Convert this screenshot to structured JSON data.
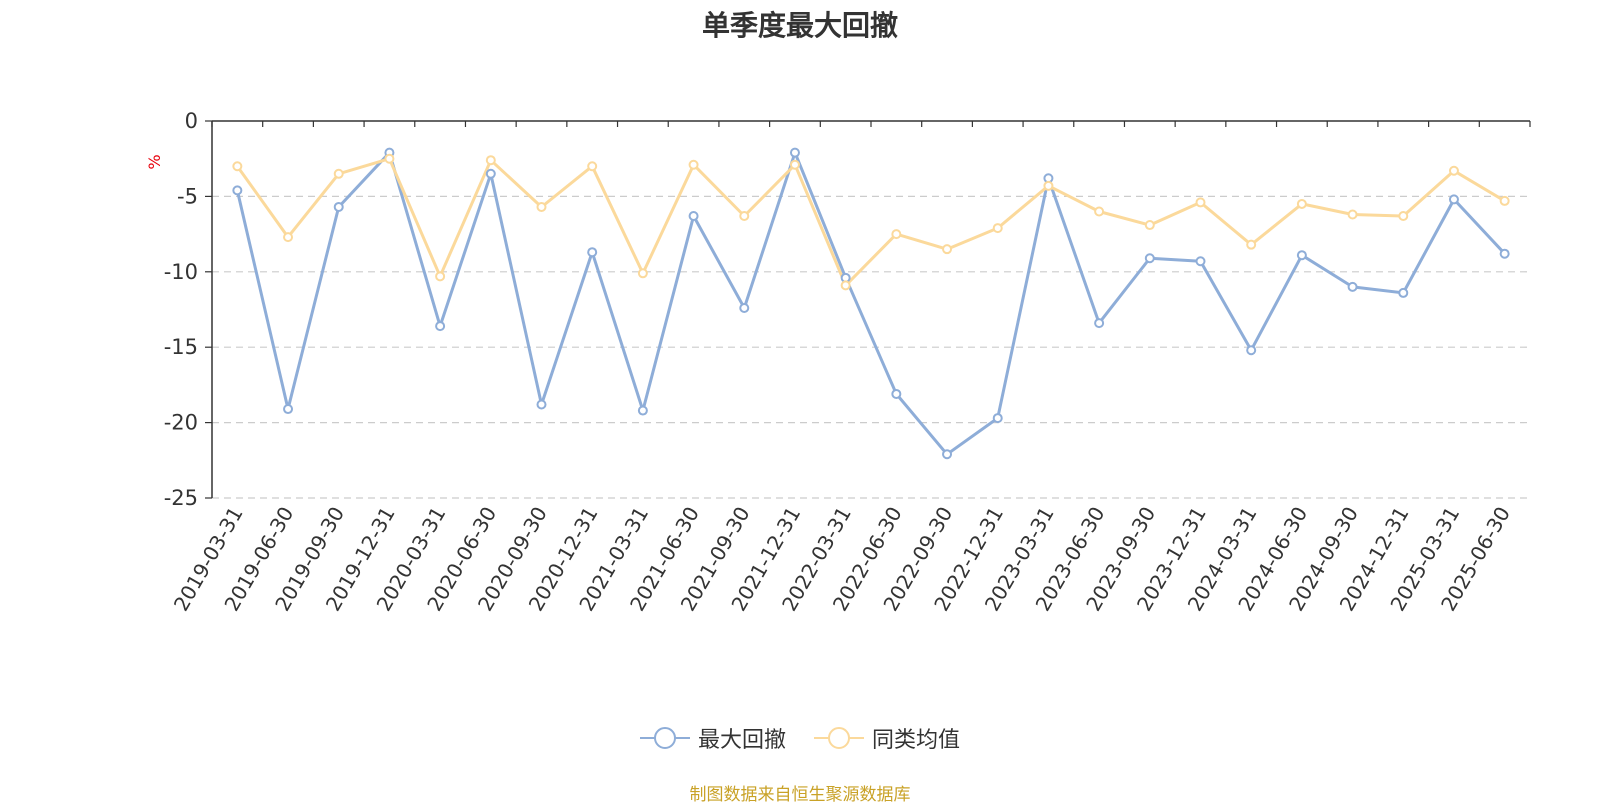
{
  "chart_data": {
    "type": "line",
    "title": "单季度最大回撤",
    "ylabel": "%",
    "ylim": [
      -25,
      0
    ],
    "yticks": [
      0,
      -5,
      -10,
      -15,
      -20,
      -25
    ],
    "grid": true,
    "legend_position": "bottom-center",
    "categories": [
      "2019-03-31",
      "2019-06-30",
      "2019-09-30",
      "2019-12-31",
      "2020-03-31",
      "2020-06-30",
      "2020-09-30",
      "2020-12-31",
      "2021-03-31",
      "2021-06-30",
      "2021-09-30",
      "2021-12-31",
      "2022-03-31",
      "2022-06-30",
      "2022-09-30",
      "2022-12-31",
      "2023-03-31",
      "2023-06-30",
      "2023-09-30",
      "2023-12-31",
      "2024-03-31",
      "2024-06-30",
      "2024-09-30",
      "2024-12-31",
      "2025-03-31",
      "2025-06-30"
    ],
    "series": [
      {
        "name": "最大回撤",
        "color": "#8eadd8",
        "values": [
          -4.6,
          -19.1,
          -5.7,
          -2.1,
          -13.6,
          -3.5,
          -18.8,
          -8.7,
          -19.2,
          -6.3,
          -12.4,
          -2.1,
          -10.4,
          -18.1,
          -22.1,
          -19.7,
          -3.8,
          -13.4,
          -9.1,
          -9.3,
          -15.2,
          -8.9,
          -11.0,
          -11.4,
          -5.2,
          -8.8
        ]
      },
      {
        "name": "同类均值",
        "color": "#fbd99b",
        "values": [
          -3.0,
          -7.7,
          -3.5,
          -2.5,
          -10.3,
          -2.6,
          -5.7,
          -3.0,
          -10.1,
          -2.9,
          -6.3,
          -2.9,
          -10.9,
          -7.5,
          -8.5,
          -7.1,
          -4.3,
          -6.0,
          -6.9,
          -5.4,
          -8.2,
          -5.5,
          -6.2,
          -6.3,
          -3.3,
          -5.3
        ]
      }
    ]
  },
  "source_note": "制图数据来自恒生聚源数据库"
}
